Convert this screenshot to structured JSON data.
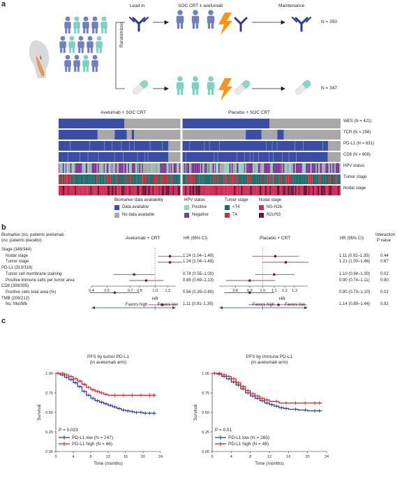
{
  "panel_a": {
    "letter": "a",
    "phase_labels": [
      "Lead in",
      "SOC CRT ± avelumab",
      "Maintenance"
    ],
    "randomized": "Randomized",
    "n_avelumab": "N = 350",
    "n_placebo": "N = 347",
    "heatmap_titles": [
      "Avelumab + SOC CRT",
      "Placebo + SOC CRT"
    ],
    "row_labels": [
      "WES (N = 421)",
      "TCR (N = 298)",
      "PD-L1 (N = 631)",
      "CD8 (N = 608)",
      "HPV status",
      "Tumor stage",
      "Nodal stage"
    ],
    "legend": {
      "groups": [
        {
          "title": "Biomarker data availability",
          "items": [
            {
              "label": "Data available",
              "color": "#3a4ea3"
            },
            {
              "label": "No data available",
              "color": "#a8a8a8"
            }
          ]
        },
        {
          "title": "HPV status",
          "items": [
            {
              "label": "Positive",
              "color": "#8fd3c4"
            },
            {
              "label": "Negative",
              "color": "#7e3b95"
            }
          ]
        },
        {
          "title": "Tumor stage",
          "items": [
            {
              "label": "<T4",
              "color": "#1e6e6a"
            },
            {
              "label": "T4",
              "color": "#d42b3c"
            }
          ]
        },
        {
          "title": "Nodal stage",
          "items": [
            {
              "label": "N0–N2b",
              "color": "#d12a55"
            },
            {
              "label": "N2c/N3",
              "color": "#6b1435"
            }
          ]
        }
      ]
    }
  },
  "panel_b": {
    "letter": "b",
    "header_left": [
      "Biomarker (no. patients avelumab",
      "(no. patients placebo)"
    ],
    "arm_titles": [
      "Avelumab + CRT",
      "Placebo + CRT"
    ],
    "hr_header": "HR (95% CI)",
    "interaction_header": [
      "Interaction",
      "P value"
    ],
    "rows": [
      {
        "label": "Stage (348/344)",
        "indent": false
      },
      {
        "label": "Nodal stage",
        "indent": true,
        "ave": "1.24 (1.04–1.49)",
        "pla": "1.11 (0.92–1.35)",
        "p": "0.44"
      },
      {
        "label": "Tumor stage",
        "indent": true,
        "ave": "1.24 (1.04–1.48)",
        "pla": "1.21 (1.00–1.46)",
        "p": "0.87"
      },
      {
        "label": "PD-L1 (313/318)",
        "indent": false
      },
      {
        "label": "Tumor cell membrane staining",
        "indent": true,
        "ave": "0.74 (0.55–1.00)",
        "pla": "1.10 (0.94–1.30)",
        "p": "0.02"
      },
      {
        "label": "Positive immune cells per tumor area",
        "indent": true,
        "ave": "0.88 (0.69–1.13)",
        "pla": "0.90 (0.74–1.11)",
        "p": "0.90"
      },
      {
        "label": "CD8 (308/305)",
        "indent": false
      },
      {
        "label": "Positive cells total area (%)",
        "indent": true,
        "ave": "0.56 (0.39–0.80)",
        "pla": "0.90 (0.73–1.10)",
        "p": "0.02"
      },
      {
        "label": "TMB (209/212)",
        "indent": false
      },
      {
        "label": "No. Mut/Mb",
        "indent": true,
        "ave": "1.11 (0.91–1.35)",
        "pla": "1.14 (0.89–1.44)",
        "p": "0.92"
      }
    ],
    "axis_title": "HR",
    "favors_high": "Favors high",
    "favors_low": "Favors low"
  },
  "panel_c": {
    "letter": "c"
  },
  "chart_data": [
    {
      "type": "scatter",
      "id": "forest-avelumab",
      "title": "Avelumab + CRT",
      "xlabel": "HR",
      "xscale": "log",
      "xlim": [
        0.4,
        1.35
      ],
      "xticks": [
        "0.4",
        "0.5",
        "0.7",
        "0.8",
        "1.0",
        "1.2"
      ],
      "reference_line": 1.0,
      "categories": [
        "Nodal stage",
        "Tumor stage",
        "Tumor cell membrane staining",
        "Positive immune cells per tumor area",
        "Positive cells total area (%)",
        "No. Mut/Mb"
      ],
      "hr": [
        1.24,
        1.24,
        0.74,
        0.88,
        0.56,
        1.11
      ],
      "ci_low": [
        1.04,
        1.04,
        0.55,
        0.69,
        0.39,
        0.91
      ],
      "ci_high": [
        1.49,
        1.48,
        1.0,
        1.13,
        0.8,
        1.35
      ]
    },
    {
      "type": "scatter",
      "id": "forest-placebo",
      "title": "Placebo + CRT",
      "xlabel": "HR",
      "xscale": "log",
      "xlim": [
        0.7,
        1.45
      ],
      "xticks": [
        "0.8",
        "0.9",
        "1.0",
        "1.1",
        "1.2",
        "1.3"
      ],
      "reference_line": 1.0,
      "categories": [
        "Nodal stage",
        "Tumor stage",
        "Tumor cell membrane staining",
        "Positive immune cells per tumor area",
        "Positive cells total area (%)",
        "No. Mut/Mb"
      ],
      "hr": [
        1.11,
        1.21,
        1.1,
        0.9,
        0.9,
        1.14
      ],
      "ci_low": [
        0.92,
        1.0,
        0.94,
        0.74,
        0.73,
        0.89
      ],
      "ci_high": [
        1.35,
        1.46,
        1.3,
        1.11,
        1.1,
        1.44
      ]
    },
    {
      "type": "line",
      "id": "km-tumor",
      "title": "PFS by tumor PD-L1",
      "subtitle": "(in avelumab arm)",
      "xlabel": "Time (months)",
      "ylabel": "Survival",
      "xlim": [
        0,
        24
      ],
      "ylim": [
        0,
        1
      ],
      "xticks": [
        "0",
        "4",
        "8",
        "12",
        "16",
        "20",
        "24"
      ],
      "yticks": [
        "0.00",
        "0.25",
        "0.50",
        "0.75",
        "1.00"
      ],
      "annotation": "P = 0.023",
      "series": [
        {
          "name": "PD-L1 low (N = 247)",
          "color": "#2b3990",
          "x": [
            0,
            1,
            2,
            3,
            4,
            5,
            6,
            7,
            8,
            9,
            10,
            11,
            12,
            13,
            14,
            15,
            16,
            17,
            18,
            19,
            20,
            21,
            22,
            23
          ],
          "y": [
            1.0,
            0.98,
            0.95,
            0.92,
            0.88,
            0.83,
            0.77,
            0.72,
            0.68,
            0.65,
            0.63,
            0.61,
            0.59,
            0.57,
            0.55,
            0.53,
            0.52,
            0.51,
            0.5,
            0.5,
            0.49,
            0.49,
            0.49,
            0.49
          ]
        },
        {
          "name": "PD-L1 high (N = 66)",
          "color": "#ec1c24",
          "x": [
            0,
            1,
            2,
            3,
            4,
            5,
            6,
            7,
            8,
            9,
            10,
            11,
            12,
            14,
            16,
            18,
            20,
            22,
            23
          ],
          "y": [
            1.0,
            1.0,
            0.98,
            0.96,
            0.93,
            0.9,
            0.86,
            0.82,
            0.79,
            0.77,
            0.75,
            0.73,
            0.72,
            0.72,
            0.72,
            0.72,
            0.72,
            0.72,
            0.72
          ]
        }
      ]
    },
    {
      "type": "line",
      "id": "km-immune",
      "title": "PFS by immune PD-L1",
      "subtitle": "(in avelumab arm)",
      "xlabel": "Time (months)",
      "ylabel": "Survival",
      "xlim": [
        0,
        24
      ],
      "ylim": [
        0,
        1
      ],
      "xticks": [
        "0",
        "4",
        "8",
        "12",
        "16",
        "20",
        "24"
      ],
      "yticks": [
        "0.00",
        "0.25",
        "0.50",
        "0.75",
        "1.00"
      ],
      "annotation": "P = 0.51",
      "series": [
        {
          "name": "PD-L1 low (N = 265)",
          "color": "#2b3990",
          "x": [
            0,
            1,
            2,
            3,
            4,
            5,
            6,
            7,
            8,
            9,
            10,
            11,
            12,
            13,
            14,
            15,
            16,
            18,
            20,
            22,
            23
          ],
          "y": [
            1.0,
            0.99,
            0.96,
            0.93,
            0.89,
            0.85,
            0.8,
            0.75,
            0.71,
            0.68,
            0.65,
            0.62,
            0.6,
            0.58,
            0.56,
            0.55,
            0.54,
            0.53,
            0.52,
            0.52,
            0.52
          ]
        },
        {
          "name": "PD-L1 high (N = 48)",
          "color": "#ec1c24",
          "x": [
            0,
            1,
            2,
            3,
            4,
            5,
            6,
            7,
            8,
            9,
            10,
            11,
            12,
            14,
            16,
            18,
            20,
            22,
            23
          ],
          "y": [
            1.0,
            1.0,
            0.98,
            0.96,
            0.93,
            0.88,
            0.83,
            0.78,
            0.74,
            0.71,
            0.68,
            0.66,
            0.64,
            0.62,
            0.62,
            0.62,
            0.62,
            0.62,
            0.62
          ]
        }
      ]
    }
  ]
}
